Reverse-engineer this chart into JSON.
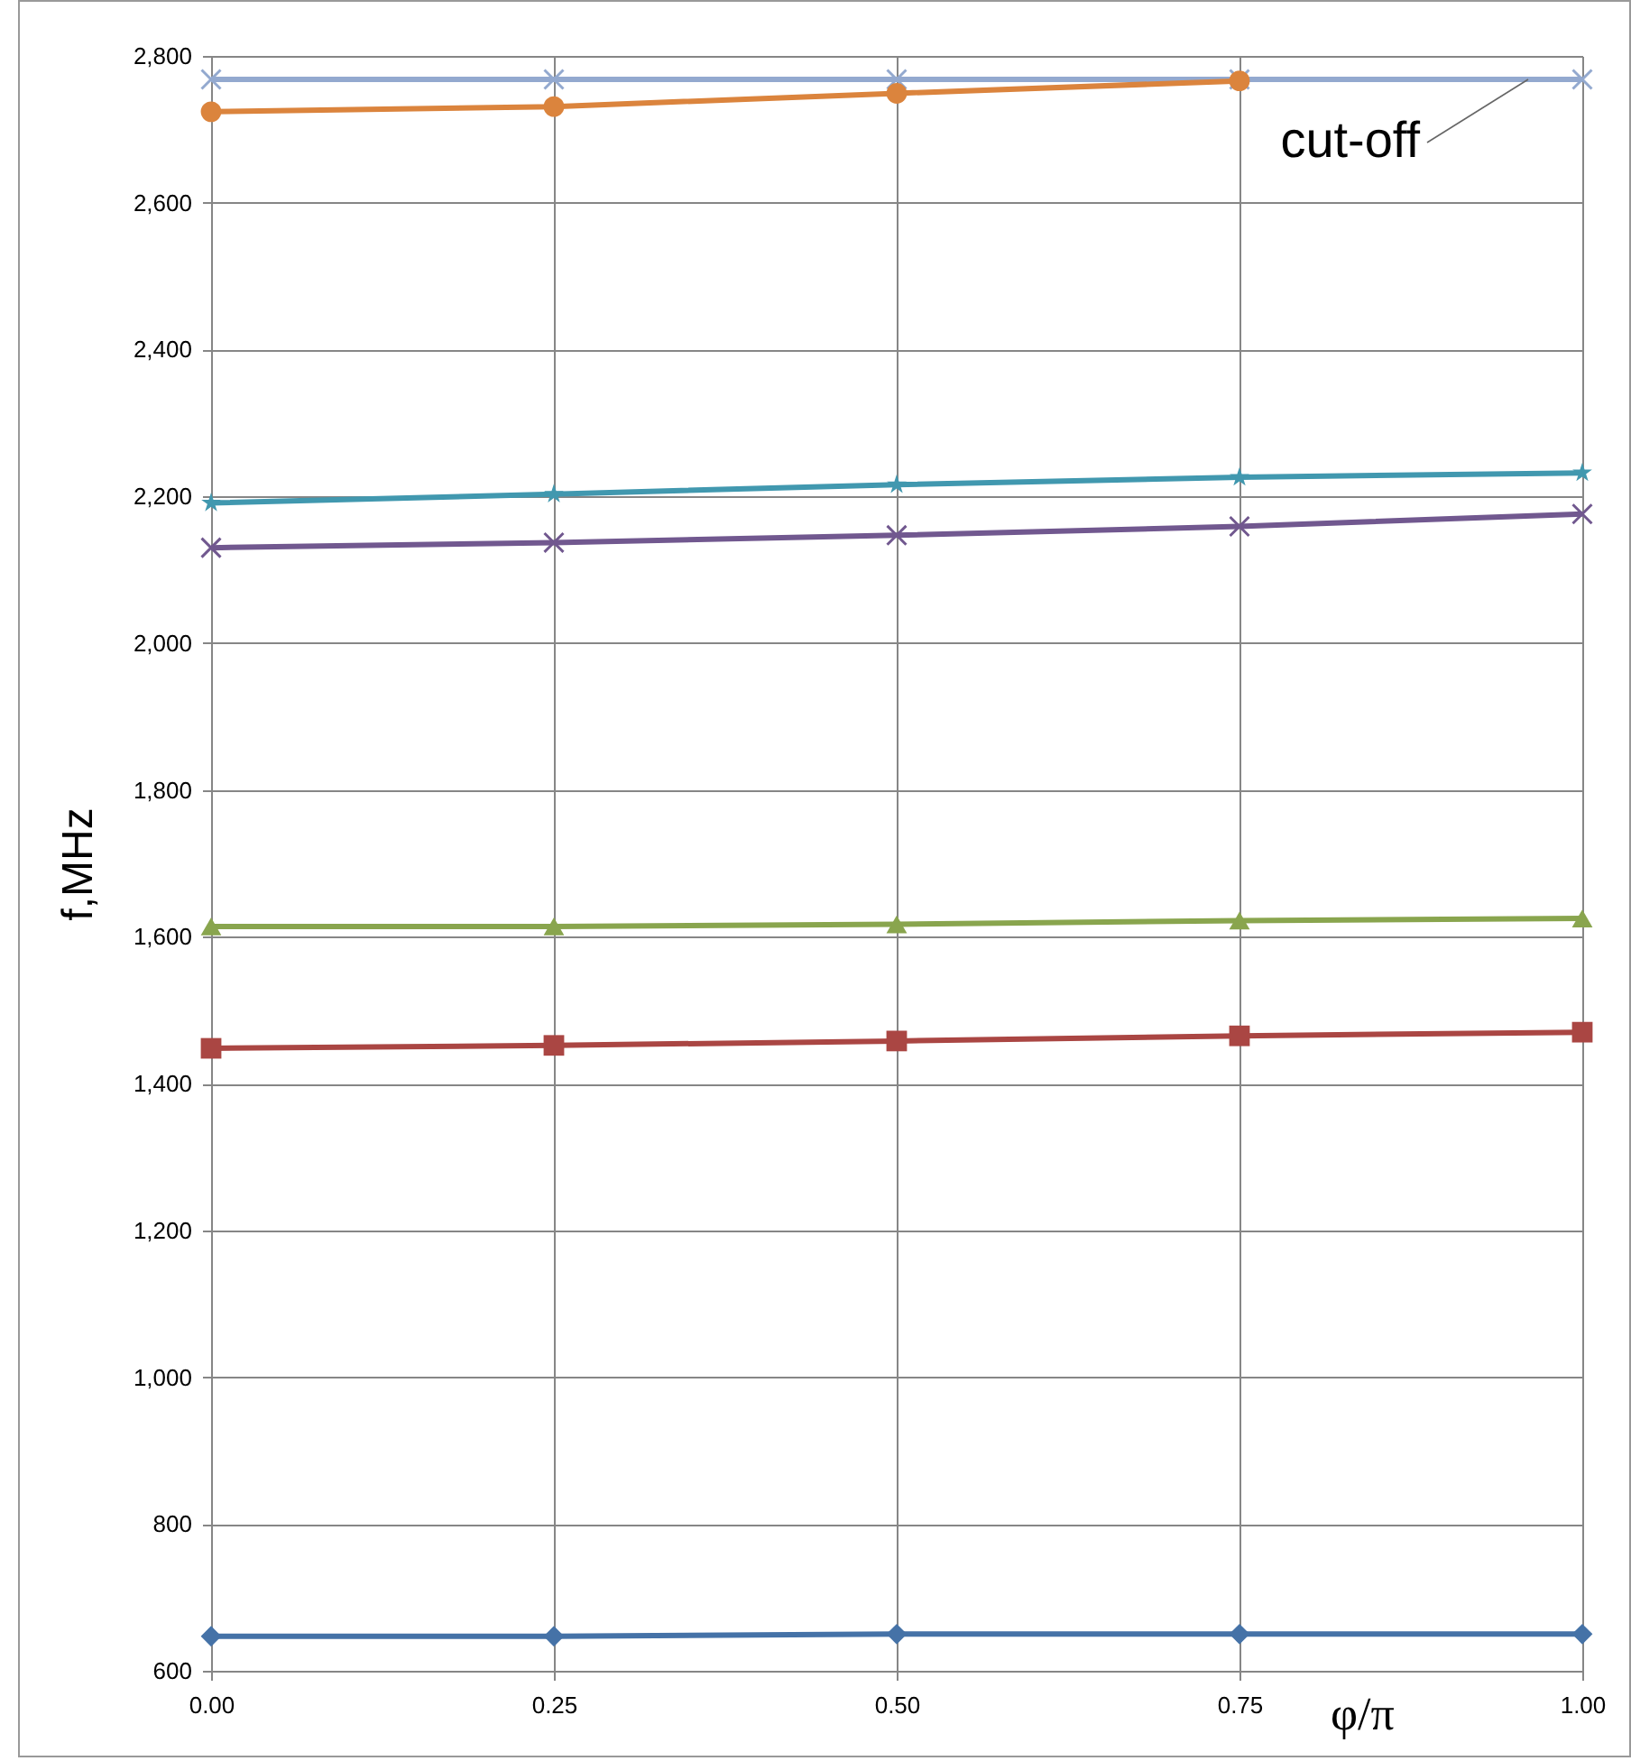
{
  "chart_data": {
    "type": "line",
    "xlabel": "φ/π",
    "ylabel": "f,MHz",
    "x": [
      0,
      0.25,
      0.5,
      0.75,
      1
    ],
    "xlim": [
      0,
      1
    ],
    "xticks": [
      {
        "value": 0,
        "label": "0.00"
      },
      {
        "value": 0.25,
        "label": "0.25"
      },
      {
        "value": 0.5,
        "label": "0.50"
      },
      {
        "value": 0.75,
        "label": "0.75"
      },
      {
        "value": 1,
        "label": "1.00"
      }
    ],
    "ylim": [
      600,
      2800
    ],
    "yticks": [
      600,
      800,
      {
        "value": 1000,
        "label": "1,000"
      },
      {
        "value": 1200,
        "label": "1,200"
      },
      {
        "value": 1400,
        "label": "1,400"
      },
      {
        "value": 1600,
        "label": "1,600"
      },
      {
        "value": 1800,
        "label": "1,800"
      },
      {
        "value": 2000,
        "label": "2,000"
      },
      {
        "value": 2200,
        "label": "2,200"
      },
      {
        "value": 2400,
        "label": "2,400"
      },
      {
        "value": 2600,
        "label": "2,600"
      },
      {
        "value": 2800,
        "label": "2,800"
      }
    ],
    "grid": true,
    "line_style": "solid",
    "series": [
      {
        "color": "#4572a7",
        "marker": "diamond",
        "values": [
          647,
          647,
          650,
          650,
          650
        ]
      },
      {
        "color": "#aa4643",
        "marker": "square",
        "values": [
          1448,
          1452,
          1458,
          1465,
          1470
        ]
      },
      {
        "color": "#89a54e",
        "marker": "triangle",
        "values": [
          1614,
          1614,
          1617,
          1622,
          1625
        ]
      },
      {
        "color": "#71588f",
        "marker": "cross",
        "values": [
          2130,
          2137,
          2147,
          2159,
          2176
        ]
      },
      {
        "color": "#4198af",
        "marker": "star",
        "values": [
          2191,
          2203,
          2216,
          2226,
          2232
        ]
      },
      {
        "color": "#db843d",
        "marker": "circle",
        "values": [
          2724,
          2731,
          2749,
          2766,
          null
        ]
      },
      {
        "name": "cut-off",
        "color": "#93a9cf",
        "marker": "cross",
        "values": [
          2768,
          2768,
          2768,
          2768,
          2768
        ]
      }
    ]
  }
}
